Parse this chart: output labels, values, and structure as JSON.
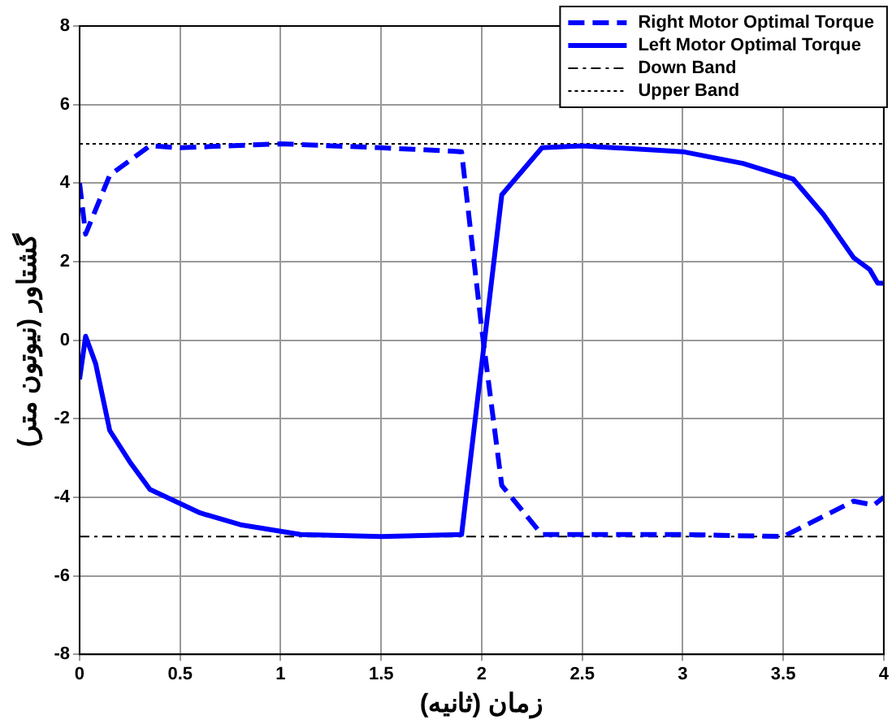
{
  "chart_data": {
    "type": "line",
    "xlabel": "زمان (ثانیه)",
    "ylabel": "گشتاور (نیوتون متر)",
    "xlim": [
      0,
      4
    ],
    "ylim": [
      -8,
      8
    ],
    "xticks": [
      0,
      0.5,
      1,
      1.5,
      2,
      2.5,
      3,
      3.5,
      4
    ],
    "yticks": [
      -8,
      -6,
      -4,
      -2,
      0,
      2,
      4,
      6,
      8
    ],
    "grid": true,
    "legend": "top right",
    "marker": "none",
    "series": [
      {
        "name": "Right Motor Optimal Torque",
        "color": "#0000ff",
        "line_style": "dashed",
        "x": [
          0,
          0.03,
          0.15,
          0.35,
          0.5,
          1,
          1.5,
          1.9,
          2.0,
          2.1,
          2.3,
          3,
          3.5,
          3.85,
          3.95,
          4
        ],
        "values": [
          4,
          2.7,
          4.2,
          4.95,
          4.9,
          5,
          4.9,
          4.8,
          0.3,
          -3.7,
          -4.95,
          -4.95,
          -5,
          -4.1,
          -4.2,
          -4
        ]
      },
      {
        "name": "Left Motor Optimal Torque",
        "color": "#0000ff",
        "line_style": "solid",
        "x": [
          0,
          0.03,
          0.08,
          0.15,
          0.25,
          0.35,
          0.6,
          0.8,
          1.1,
          1.5,
          1.9,
          2.1,
          2.3,
          2.5,
          3,
          3.3,
          3.55,
          3.7,
          3.85,
          3.93,
          3.97,
          4
        ],
        "values": [
          -1,
          0.1,
          -0.6,
          -2.3,
          -3.1,
          -3.8,
          -4.4,
          -4.7,
          -4.95,
          -5,
          -4.95,
          3.7,
          4.9,
          4.95,
          4.8,
          4.5,
          4.1,
          3.2,
          2.1,
          1.8,
          1.45,
          1.45
        ]
      },
      {
        "name": "Down Band",
        "color": "#000000",
        "line_style": "dashdot",
        "x": [
          0,
          4
        ],
        "values": [
          -5,
          -5
        ]
      },
      {
        "name": "Upper Band",
        "color": "#000000",
        "line_style": "dotted",
        "x": [
          0,
          4
        ],
        "values": [
          5,
          5
        ]
      }
    ]
  }
}
